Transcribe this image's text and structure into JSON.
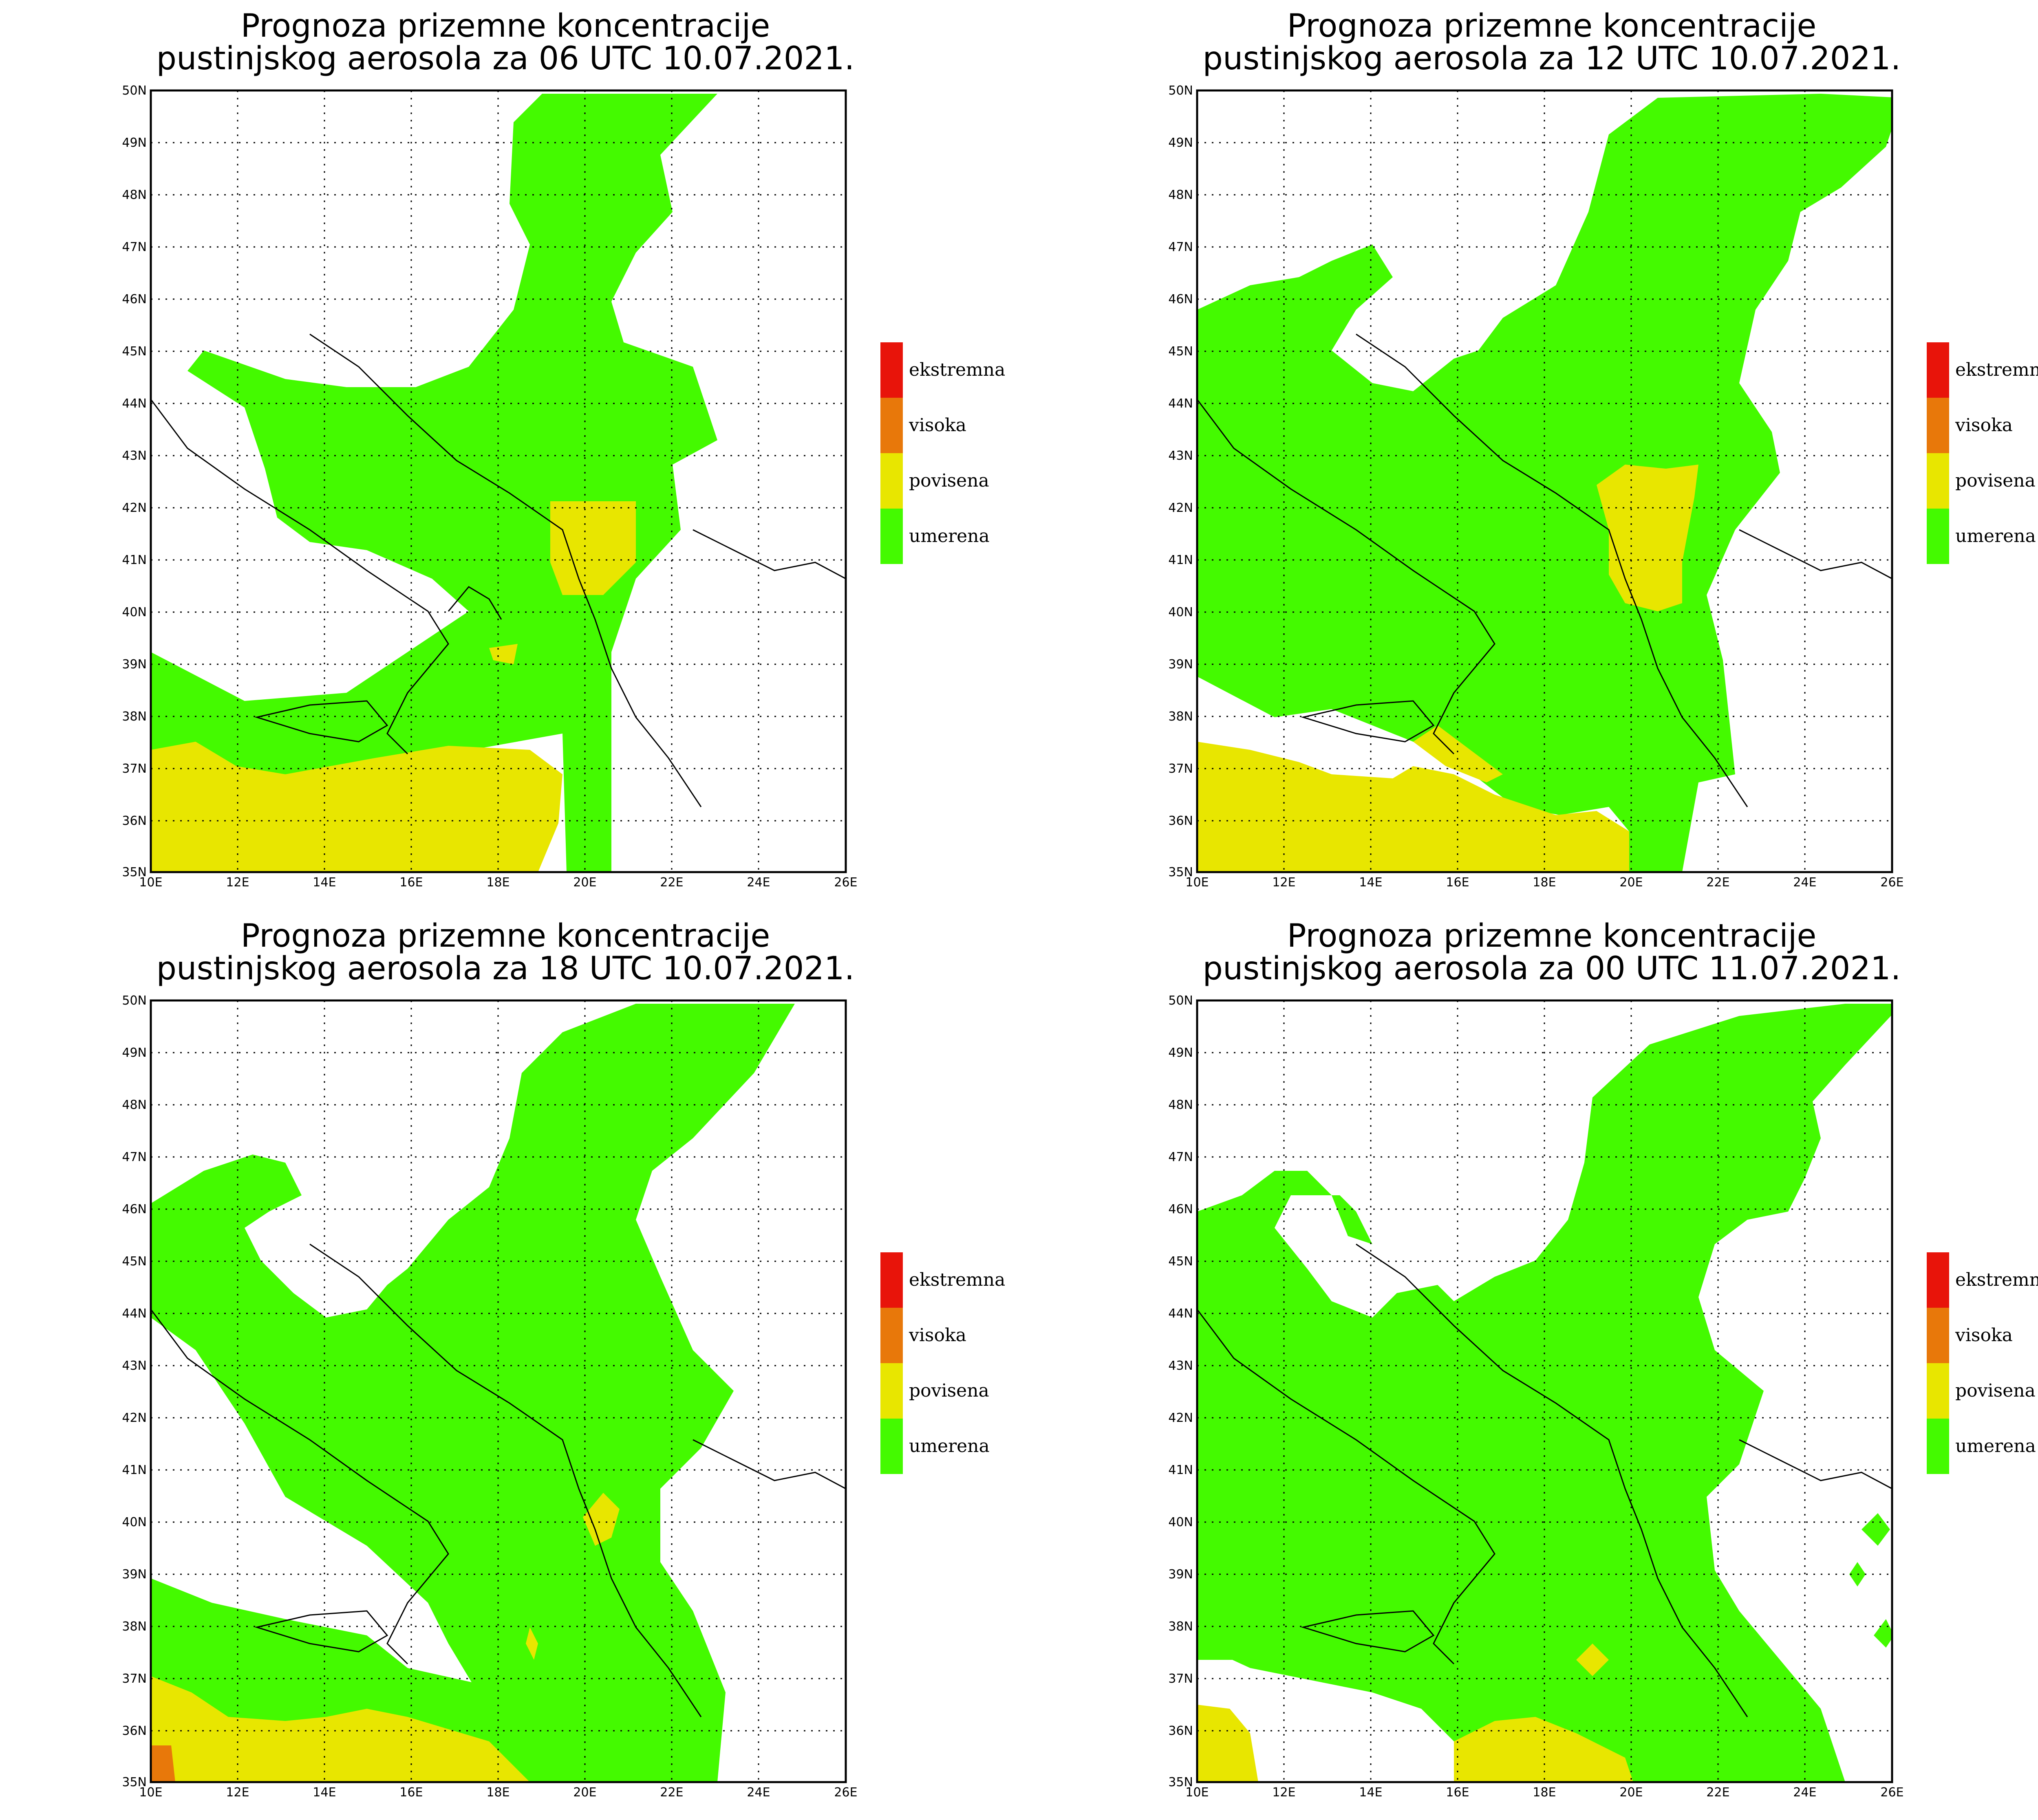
{
  "panels": [
    {
      "title_line1": "Prognoza prizemne koncentracije",
      "title_line2": "pustinjskog aerosola za 06 UTC 10.07.2021."
    },
    {
      "title_line1": "Prognoza prizemne koncentracije",
      "title_line2": "pustinjskog aerosola za 12 UTC 10.07.2021."
    },
    {
      "title_line1": "Prognoza prizemne koncentracije",
      "title_line2": "pustinjskog aerosola za 18 UTC 10.07.2021."
    },
    {
      "title_line1": "Prognoza prizemne koncentracije",
      "title_line2": "pustinjskog aerosola za 00 UTC 11.07.2021."
    }
  ],
  "axes": {
    "lon_labels": [
      "10E",
      "12E",
      "14E",
      "16E",
      "18E",
      "20E",
      "22E",
      "24E",
      "26E"
    ],
    "lat_labels": [
      "50N",
      "49N",
      "48N",
      "47N",
      "46N",
      "45N",
      "44N",
      "43N",
      "42N",
      "41N",
      "40N",
      "39N",
      "38N",
      "37N",
      "36N",
      "35N"
    ]
  },
  "legend": [
    {
      "label": "ekstremna",
      "color": "#e8140a"
    },
    {
      "label": "visoka",
      "color": "#e8780a"
    },
    {
      "label": "povisena",
      "color": "#e8e600"
    },
    {
      "label": "umerena",
      "color": "#44fa00"
    }
  ],
  "colors": {
    "moderate": "#44fa00",
    "elevated": "#e8e600",
    "high": "#e8780a",
    "extreme": "#e8140a"
  }
}
